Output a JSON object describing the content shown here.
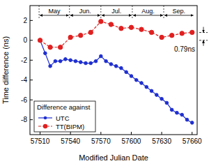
{
  "chart_data": {
    "type": "line",
    "x_label": "Modified Julian Date",
    "y_label": "Time difference (ns)",
    "xlim": [
      57500,
      57665
    ],
    "xticks": [
      57510,
      57540,
      57570,
      57600,
      57630,
      57660
    ],
    "ylim": [
      -9.5,
      3.5
    ],
    "yticks": [
      -8,
      -6,
      -4,
      -2,
      0,
      2
    ],
    "legend": "lower left",
    "legend_title": "Difference against",
    "periods": [
      {
        "label": "May",
        "start": 57509,
        "end": 57539
      },
      {
        "label": "Jun.",
        "start": 57539,
        "end": 57570
      },
      {
        "label": "Jul.",
        "start": 57570,
        "end": 57601
      },
      {
        "label": "Aug.",
        "start": 57601,
        "end": 57632
      },
      {
        "label": "Sep.",
        "start": 57632,
        "end": 57662
      }
    ],
    "annotations": [
      {
        "text": "0.79ns",
        "value": 0.79
      }
    ],
    "series": [
      {
        "name": "UTC",
        "color": "#1f2fd0",
        "marker": "circle",
        "line_style": "solid",
        "x": [
          57510,
          57515,
          57520,
          57525,
          57530,
          57535,
          57540,
          57545,
          57550,
          57555,
          57560,
          57565,
          57570,
          57575,
          57580,
          57585,
          57590,
          57595,
          57600,
          57605,
          57610,
          57615,
          57620,
          57625,
          57630,
          57635,
          57640,
          57645,
          57650,
          57655,
          57660
        ],
        "values": [
          0,
          -1.3,
          -2.6,
          -2.1,
          -2.1,
          -1.9,
          -2.0,
          -2.1,
          -2.2,
          -2.3,
          -2.3,
          -2.1,
          -1.6,
          -2.1,
          -2.4,
          -2.6,
          -2.8,
          -3.2,
          -3.6,
          -4.0,
          -4.3,
          -4.7,
          -5.1,
          -5.5,
          -5.9,
          -6.3,
          -7.0,
          -7.3,
          -7.5,
          -8.0,
          -8.3
        ]
      },
      {
        "name": "TT(BIPM)",
        "color": "#e02020",
        "marker": "circle",
        "line_style": "dashed",
        "x": [
          57510,
          57520,
          57530,
          57540,
          57550,
          57560,
          57570,
          57580,
          57590,
          57600,
          57610,
          57620,
          57630,
          57640,
          57650,
          57660
        ],
        "values": [
          0,
          -0.7,
          -0.7,
          0.3,
          0.5,
          0.8,
          1.9,
          1.6,
          1.2,
          1.3,
          1.1,
          0.8,
          0.3,
          0.5,
          0.7,
          0.8
        ]
      }
    ]
  }
}
